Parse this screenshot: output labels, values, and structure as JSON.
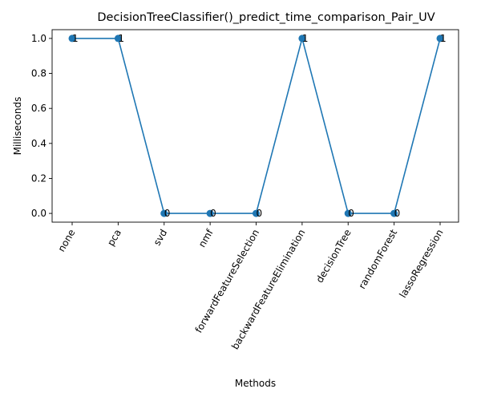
{
  "chart_data": {
    "type": "line",
    "title": "DecisionTreeClassifier()_predict_time_comparison_Pair_UV",
    "xlabel": "Methods",
    "ylabel": "Milliseconds",
    "categories": [
      "none",
      "pca",
      "svd",
      "nmf",
      "forwardFeatureSelection",
      "backwardFeatureElimination",
      "decisionTree",
      "randomForest",
      "lassoRegression"
    ],
    "values": [
      1,
      1,
      0,
      0,
      0,
      1,
      0,
      0,
      1
    ],
    "data_labels": [
      "1",
      "1",
      "0",
      "0",
      "0",
      "1",
      "0",
      "0",
      "1"
    ],
    "ylim": [
      -0.05,
      1.05
    ],
    "yticks": [
      0.0,
      0.2,
      0.4,
      0.6,
      0.8,
      1.0
    ],
    "ytick_labels": [
      "0.0",
      "0.2",
      "0.4",
      "0.6",
      "0.8",
      "1.0"
    ],
    "grid": false,
    "line_color": "#1f77b4",
    "marker": "circle"
  }
}
